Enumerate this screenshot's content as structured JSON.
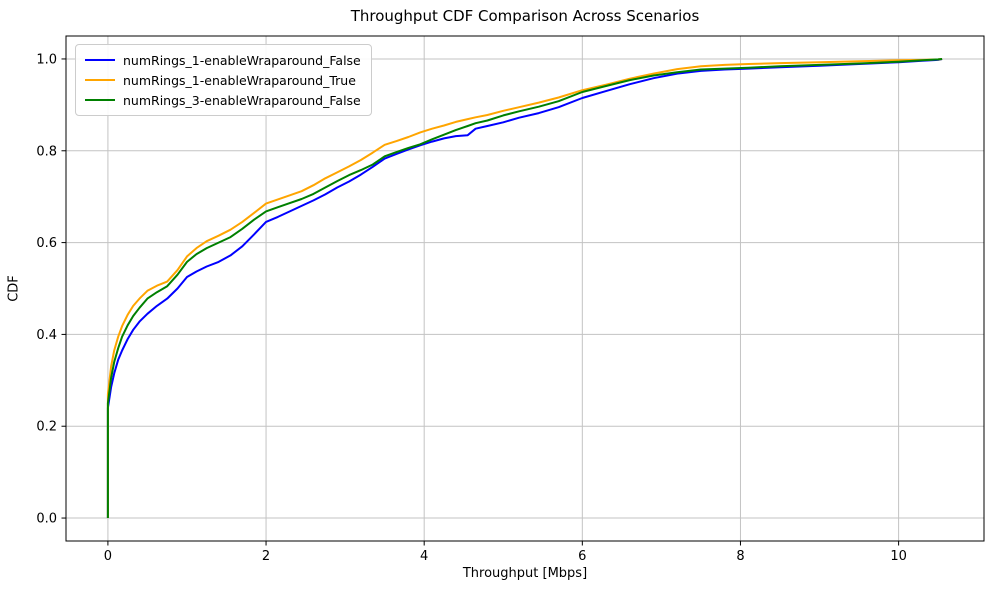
{
  "chart_data": {
    "type": "line",
    "subtype": "empirical-cdf",
    "title": "Throughput CDF Comparison Across Scenarios",
    "xlabel": "Throughput [Mbps]",
    "ylabel": "CDF",
    "xlim": [
      -0.53,
      11.08
    ],
    "ylim": [
      -0.05,
      1.05
    ],
    "x_ticks": [
      0,
      2,
      4,
      6,
      8,
      10
    ],
    "x_tick_labels": [
      "0",
      "2",
      "4",
      "6",
      "8",
      "10"
    ],
    "y_ticks": [
      0.0,
      0.2,
      0.4,
      0.6,
      0.8,
      1.0
    ],
    "y_tick_labels": [
      "0.0",
      "0.2",
      "0.4",
      "0.6",
      "0.8",
      "1.0"
    ],
    "grid": true,
    "grid_color": "#c3c3c3",
    "spine_color": "#000000",
    "legend_position": "upper-left",
    "series": [
      {
        "name": "numRings_1-enableWraparound_False",
        "color": "#0000ff",
        "points": [
          [
            0,
            0
          ],
          [
            0,
            0.24
          ],
          [
            0.04,
            0.285
          ],
          [
            0.08,
            0.315
          ],
          [
            0.13,
            0.345
          ],
          [
            0.18,
            0.365
          ],
          [
            0.25,
            0.39
          ],
          [
            0.32,
            0.41
          ],
          [
            0.4,
            0.428
          ],
          [
            0.5,
            0.445
          ],
          [
            0.62,
            0.462
          ],
          [
            0.75,
            0.478
          ],
          [
            0.88,
            0.5
          ],
          [
            1.0,
            0.525
          ],
          [
            1.12,
            0.537
          ],
          [
            1.25,
            0.548
          ],
          [
            1.4,
            0.558
          ],
          [
            1.55,
            0.572
          ],
          [
            1.7,
            0.592
          ],
          [
            1.85,
            0.618
          ],
          [
            2.0,
            0.645
          ],
          [
            2.15,
            0.656
          ],
          [
            2.3,
            0.668
          ],
          [
            2.45,
            0.68
          ],
          [
            2.6,
            0.692
          ],
          [
            2.75,
            0.705
          ],
          [
            2.9,
            0.72
          ],
          [
            3.05,
            0.733
          ],
          [
            3.2,
            0.748
          ],
          [
            3.35,
            0.765
          ],
          [
            3.5,
            0.783
          ],
          [
            3.65,
            0.793
          ],
          [
            3.8,
            0.803
          ],
          [
            3.95,
            0.812
          ],
          [
            4.1,
            0.82
          ],
          [
            4.25,
            0.827
          ],
          [
            4.4,
            0.832
          ],
          [
            4.55,
            0.834
          ],
          [
            4.65,
            0.848
          ],
          [
            4.8,
            0.854
          ],
          [
            5.0,
            0.862
          ],
          [
            5.2,
            0.872
          ],
          [
            5.45,
            0.882
          ],
          [
            5.7,
            0.895
          ],
          [
            6.0,
            0.915
          ],
          [
            6.3,
            0.93
          ],
          [
            6.6,
            0.945
          ],
          [
            6.9,
            0.958
          ],
          [
            7.2,
            0.968
          ],
          [
            7.5,
            0.974
          ],
          [
            7.8,
            0.977
          ],
          [
            8.1,
            0.979
          ],
          [
            8.5,
            0.982
          ],
          [
            9.0,
            0.985
          ],
          [
            9.5,
            0.989
          ],
          [
            10.0,
            0.993
          ],
          [
            10.3,
            0.996
          ],
          [
            10.5,
            0.998
          ],
          [
            10.55,
            1.0
          ]
        ]
      },
      {
        "name": "numRings_1-enableWraparound_True",
        "color": "#ffa500",
        "points": [
          [
            0,
            0
          ],
          [
            0,
            0.27
          ],
          [
            0.04,
            0.33
          ],
          [
            0.08,
            0.365
          ],
          [
            0.13,
            0.395
          ],
          [
            0.18,
            0.418
          ],
          [
            0.25,
            0.443
          ],
          [
            0.32,
            0.462
          ],
          [
            0.4,
            0.478
          ],
          [
            0.5,
            0.495
          ],
          [
            0.62,
            0.506
          ],
          [
            0.75,
            0.515
          ],
          [
            0.88,
            0.54
          ],
          [
            1.0,
            0.57
          ],
          [
            1.12,
            0.588
          ],
          [
            1.25,
            0.603
          ],
          [
            1.4,
            0.615
          ],
          [
            1.55,
            0.628
          ],
          [
            1.7,
            0.645
          ],
          [
            1.85,
            0.665
          ],
          [
            2.0,
            0.685
          ],
          [
            2.15,
            0.694
          ],
          [
            2.3,
            0.703
          ],
          [
            2.45,
            0.712
          ],
          [
            2.6,
            0.725
          ],
          [
            2.75,
            0.74
          ],
          [
            2.9,
            0.753
          ],
          [
            3.05,
            0.766
          ],
          [
            3.2,
            0.78
          ],
          [
            3.35,
            0.796
          ],
          [
            3.5,
            0.813
          ],
          [
            3.65,
            0.821
          ],
          [
            3.8,
            0.83
          ],
          [
            3.95,
            0.84
          ],
          [
            4.1,
            0.848
          ],
          [
            4.25,
            0.855
          ],
          [
            4.4,
            0.863
          ],
          [
            4.55,
            0.869
          ],
          [
            4.65,
            0.873
          ],
          [
            4.8,
            0.878
          ],
          [
            5.0,
            0.887
          ],
          [
            5.2,
            0.895
          ],
          [
            5.45,
            0.905
          ],
          [
            5.7,
            0.916
          ],
          [
            6.0,
            0.932
          ],
          [
            6.3,
            0.944
          ],
          [
            6.6,
            0.957
          ],
          [
            6.9,
            0.968
          ],
          [
            7.2,
            0.978
          ],
          [
            7.5,
            0.984
          ],
          [
            7.8,
            0.987
          ],
          [
            8.1,
            0.989
          ],
          [
            8.5,
            0.991
          ],
          [
            9.0,
            0.993
          ],
          [
            9.5,
            0.995
          ],
          [
            10.0,
            0.997
          ],
          [
            10.3,
            0.998
          ],
          [
            10.5,
            0.999
          ],
          [
            10.55,
            1.0
          ]
        ]
      },
      {
        "name": "numRings_3-enableWraparound_False",
        "color": "#008000",
        "points": [
          [
            0,
            0
          ],
          [
            0,
            0.25
          ],
          [
            0.04,
            0.305
          ],
          [
            0.08,
            0.34
          ],
          [
            0.13,
            0.37
          ],
          [
            0.18,
            0.395
          ],
          [
            0.25,
            0.42
          ],
          [
            0.32,
            0.44
          ],
          [
            0.4,
            0.458
          ],
          [
            0.5,
            0.478
          ],
          [
            0.62,
            0.492
          ],
          [
            0.75,
            0.505
          ],
          [
            0.88,
            0.53
          ],
          [
            1.0,
            0.558
          ],
          [
            1.12,
            0.575
          ],
          [
            1.25,
            0.588
          ],
          [
            1.4,
            0.6
          ],
          [
            1.55,
            0.612
          ],
          [
            1.7,
            0.63
          ],
          [
            1.85,
            0.65
          ],
          [
            2.0,
            0.668
          ],
          [
            2.15,
            0.677
          ],
          [
            2.3,
            0.686
          ],
          [
            2.45,
            0.695
          ],
          [
            2.6,
            0.706
          ],
          [
            2.75,
            0.72
          ],
          [
            2.9,
            0.734
          ],
          [
            3.05,
            0.747
          ],
          [
            3.2,
            0.758
          ],
          [
            3.35,
            0.77
          ],
          [
            3.5,
            0.788
          ],
          [
            3.65,
            0.797
          ],
          [
            3.8,
            0.806
          ],
          [
            3.95,
            0.814
          ],
          [
            4.1,
            0.825
          ],
          [
            4.25,
            0.835
          ],
          [
            4.4,
            0.845
          ],
          [
            4.55,
            0.854
          ],
          [
            4.65,
            0.86
          ],
          [
            4.8,
            0.866
          ],
          [
            5.0,
            0.877
          ],
          [
            5.2,
            0.886
          ],
          [
            5.45,
            0.896
          ],
          [
            5.7,
            0.908
          ],
          [
            6.0,
            0.928
          ],
          [
            6.3,
            0.941
          ],
          [
            6.6,
            0.954
          ],
          [
            6.9,
            0.964
          ],
          [
            7.2,
            0.971
          ],
          [
            7.5,
            0.977
          ],
          [
            7.8,
            0.979
          ],
          [
            8.1,
            0.981
          ],
          [
            8.5,
            0.984
          ],
          [
            9.0,
            0.987
          ],
          [
            9.5,
            0.99
          ],
          [
            10.0,
            0.994
          ],
          [
            10.3,
            0.997
          ],
          [
            10.5,
            0.999
          ],
          [
            10.55,
            1.0
          ]
        ]
      }
    ]
  }
}
